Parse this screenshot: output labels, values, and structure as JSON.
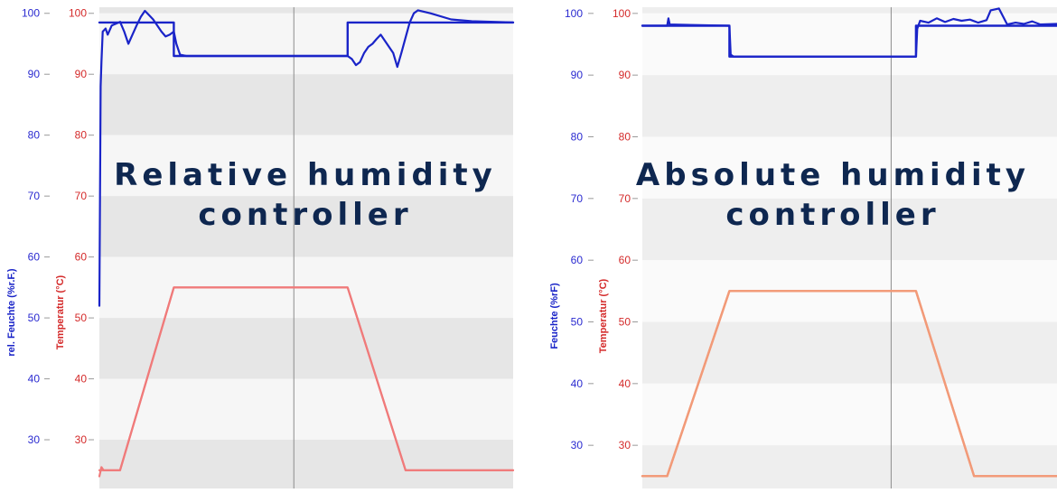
{
  "colors": {
    "humidity": "#1a24c8",
    "temperature": "#f07a7a",
    "temperature_abs": "#f29a78",
    "title": "#0e2750",
    "band_dark": "#e6e6e6",
    "band_light": "#f6f6f6",
    "band_dark_alt": "#eeeeee",
    "band_light_alt": "#fafafa",
    "divider": "#8c8c8c",
    "hum_tick": "#2a2ad0",
    "temp_tick": "#d42a2a"
  },
  "chart_data": [
    {
      "type": "line",
      "overlay_title": [
        "Relative humidity",
        "controller"
      ],
      "y_humidity": {
        "label": "rel. Feuchte (%r.F.)",
        "ticks": [
          "100",
          "90",
          "80",
          "70",
          "60",
          "50",
          "40",
          "30"
        ],
        "ylim": [
          22,
          101
        ]
      },
      "y_temperature": {
        "label": "Temperatur (°C)",
        "ticks": [
          "100",
          "90",
          "80",
          "70",
          "60",
          "50",
          "40",
          "30"
        ],
        "ylim": [
          22,
          101
        ]
      },
      "x": {
        "range": [
          0,
          100
        ],
        "divider": 47
      },
      "series": [
        {
          "key": "humidity_setpoint",
          "axis": "humidity",
          "points": [
            [
              0,
              98.5
            ],
            [
              18,
              98.5
            ],
            [
              18,
              93
            ],
            [
              60,
              93
            ],
            [
              60,
              98.5
            ],
            [
              100,
              98.5
            ]
          ]
        },
        {
          "key": "humidity_actual",
          "axis": "humidity",
          "points": [
            [
              0,
              52
            ],
            [
              0.3,
              88
            ],
            [
              0.5,
              92
            ],
            [
              0.8,
              97
            ],
            [
              1.5,
              97.5
            ],
            [
              2,
              96.5
            ],
            [
              3,
              98
            ],
            [
              4,
              98.3
            ],
            [
              5,
              98.6
            ],
            [
              6,
              97
            ],
            [
              7,
              95
            ],
            [
              8,
              96.5
            ],
            [
              9,
              98
            ],
            [
              10,
              99.4
            ],
            [
              11,
              100.4
            ],
            [
              12,
              99.7
            ],
            [
              13,
              99
            ],
            [
              14,
              98
            ],
            [
              15,
              97
            ],
            [
              16,
              96.2
            ],
            [
              17,
              96.5
            ],
            [
              18,
              97
            ],
            [
              18.6,
              95
            ],
            [
              19.5,
              93.2
            ],
            [
              21,
              93
            ],
            [
              30,
              93
            ],
            [
              40,
              93
            ],
            [
              45,
              93
            ],
            [
              50,
              93
            ],
            [
              55,
              93
            ],
            [
              58,
              93
            ],
            [
              60,
              93
            ],
            [
              61,
              92.5
            ],
            [
              62,
              91.5
            ],
            [
              63,
              92
            ],
            [
              64,
              93.5
            ],
            [
              65,
              94.5
            ],
            [
              66,
              95
            ],
            [
              67,
              95.8
            ],
            [
              68,
              96.5
            ],
            [
              69,
              95.5
            ],
            [
              70,
              94.5
            ],
            [
              71,
              93.5
            ],
            [
              72,
              91.2
            ],
            [
              73,
              93.5
            ],
            [
              74,
              96
            ],
            [
              75,
              98.5
            ],
            [
              76,
              100
            ],
            [
              77,
              100.5
            ],
            [
              80,
              100
            ],
            [
              85,
              99
            ],
            [
              90,
              98.7
            ],
            [
              100,
              98.5
            ]
          ]
        },
        {
          "key": "temperature_setpoint",
          "axis": "temperature",
          "points": [
            [
              0,
              25
            ],
            [
              5,
              25
            ],
            [
              18,
              55
            ],
            [
              60,
              55
            ],
            [
              74,
              25
            ],
            [
              100,
              25
            ]
          ]
        },
        {
          "key": "temperature_actual",
          "axis": "temperature",
          "points": [
            [
              0,
              24
            ],
            [
              0.5,
              25.5
            ],
            [
              1,
              25
            ],
            [
              5,
              25
            ],
            [
              18,
              55
            ],
            [
              60,
              55
            ],
            [
              74,
              25
            ],
            [
              100,
              25
            ]
          ]
        }
      ]
    },
    {
      "type": "line",
      "overlay_title": [
        "Absolute humidity",
        "controller"
      ],
      "y_humidity": {
        "label": "Feuchte (%rF)",
        "ticks": [
          "100",
          "90",
          "80",
          "70",
          "60",
          "50",
          "40",
          "30"
        ],
        "ylim": [
          23,
          101
        ]
      },
      "y_temperature": {
        "label": "Temperatur (°C)",
        "ticks": [
          "100",
          "90",
          "80",
          "70",
          "60",
          "50",
          "40",
          "30"
        ],
        "ylim": [
          23,
          101
        ]
      },
      "x": {
        "range": [
          0,
          100
        ],
        "divider": 60
      },
      "series": [
        {
          "key": "humidity_setpoint",
          "axis": "humidity",
          "points": [
            [
              0,
              98
            ],
            [
              21,
              98
            ],
            [
              21,
              93
            ],
            [
              66,
              93
            ],
            [
              66,
              98
            ],
            [
              100,
              98
            ]
          ]
        },
        {
          "key": "humidity_actual",
          "axis": "humidity",
          "points": [
            [
              0,
              98
            ],
            [
              6,
              98
            ],
            [
              6.3,
              99.2
            ],
            [
              6.6,
              98.2
            ],
            [
              21,
              98
            ],
            [
              21.3,
              93.3
            ],
            [
              22,
              93
            ],
            [
              66,
              93
            ],
            [
              66.3,
              97.5
            ],
            [
              67,
              98.8
            ],
            [
              69,
              98.5
            ],
            [
              71,
              99.2
            ],
            [
              73,
              98.6
            ],
            [
              75,
              99.1
            ],
            [
              77,
              98.8
            ],
            [
              79,
              99
            ],
            [
              81,
              98.5
            ],
            [
              83,
              98.9
            ],
            [
              84,
              100.5
            ],
            [
              86,
              100.8
            ],
            [
              87,
              99.5
            ],
            [
              88,
              98.2
            ],
            [
              90,
              98.5
            ],
            [
              92,
              98.3
            ],
            [
              94,
              98.7
            ],
            [
              96,
              98.2
            ],
            [
              100,
              98.3
            ]
          ]
        },
        {
          "key": "temperature_setpoint",
          "axis": "temperature",
          "points": [
            [
              0,
              25
            ],
            [
              6,
              25
            ],
            [
              21,
              55
            ],
            [
              66,
              55
            ],
            [
              80,
              25
            ],
            [
              100,
              25
            ]
          ]
        },
        {
          "key": "temperature_actual",
          "axis": "temperature",
          "points": [
            [
              0,
              25
            ],
            [
              6,
              25
            ],
            [
              21,
              55
            ],
            [
              66,
              55
            ],
            [
              80,
              25
            ],
            [
              100,
              25
            ]
          ]
        }
      ]
    }
  ]
}
